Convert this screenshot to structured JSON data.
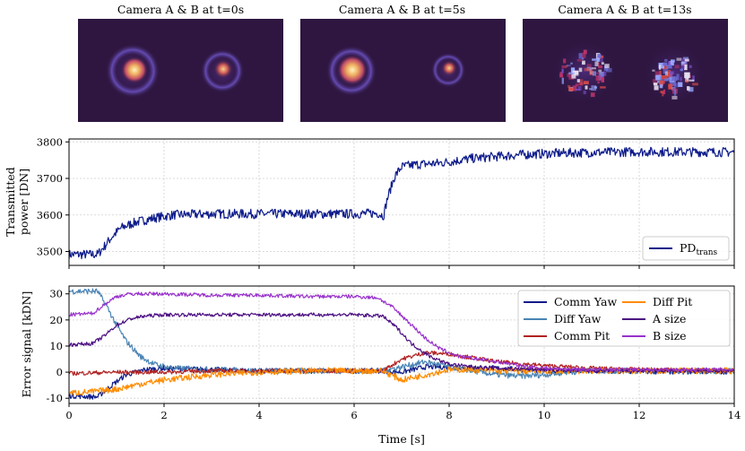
{
  "chart_data": [
    {
      "type": "image",
      "panel": "camera-thumbnails",
      "titles": [
        "Camera A & B at t=0s",
        "Camera A & B at t=5s",
        "Camera A & B at t=13s"
      ],
      "colors": {
        "background": "#2e1640",
        "ring": "#7b4fc8",
        "core": "#f5e09a",
        "speckle_blue": "#9aa8ff",
        "speckle_red": "#d84a4a"
      }
    },
    {
      "type": "line",
      "panel": "transmitted-power",
      "xlim": [
        0,
        14
      ],
      "ylim": [
        3462,
        3808
      ],
      "y_ticks": [
        3500,
        3600,
        3700,
        3800
      ],
      "ylabel": [
        "Transmitted",
        "power [DN]"
      ],
      "grid": true,
      "legend_position": "lower-right",
      "series": [
        {
          "name": "PD",
          "subscript": "trans",
          "color": "#0d1b8a",
          "noise_amplitude": 13,
          "x": [
            0,
            0.6,
            0.75,
            0.9,
            1.1,
            1.4,
            1.8,
            2.2,
            3,
            4,
            5,
            6,
            6.5,
            6.62,
            6.7,
            6.85,
            7.0,
            7.3,
            7.8,
            8.5,
            9.5,
            10.5,
            12,
            14
          ],
          "y": [
            3492,
            3492,
            3515,
            3540,
            3565,
            3580,
            3592,
            3600,
            3603,
            3603,
            3603,
            3603,
            3605,
            3598,
            3645,
            3705,
            3732,
            3738,
            3742,
            3755,
            3765,
            3770,
            3773,
            3772
          ]
        }
      ]
    },
    {
      "type": "line",
      "panel": "error-signals",
      "xlim": [
        0,
        14
      ],
      "ylim": [
        -12,
        33
      ],
      "x_ticks": [
        0,
        2,
        4,
        6,
        8,
        10,
        12,
        14
      ],
      "y_ticks": [
        -10,
        0,
        10,
        20,
        30
      ],
      "xlabel": "Time [s]",
      "ylabel": "Error signal [kDN]",
      "grid": true,
      "legend_position": "upper-right",
      "series": [
        {
          "name": "Comm Yaw",
          "color": "#0d1b8a",
          "noise_amplitude": 1.0,
          "x": [
            0,
            0.6,
            0.9,
            1.2,
            1.6,
            2,
            3,
            4,
            5,
            6,
            6.6,
            7,
            7.5,
            8,
            9,
            10,
            11,
            12,
            13,
            14
          ],
          "y": [
            -9,
            -9.5,
            -5,
            -1,
            1,
            1.5,
            1,
            0.5,
            0.5,
            0.5,
            0.5,
            0,
            2,
            2,
            1.5,
            0.5,
            0.3,
            0.3,
            0.2,
            0.2
          ]
        },
        {
          "name": "Diff Yaw",
          "color": "#4a84b4",
          "noise_amplitude": 1.1,
          "x": [
            0,
            0.6,
            0.8,
            1.0,
            1.2,
            1.5,
            1.8,
            2.2,
            3,
            4,
            5,
            6,
            6.6,
            7,
            7.5,
            8,
            8.5,
            9,
            9.5,
            10,
            10.5,
            11,
            12,
            14
          ],
          "y": [
            31,
            31,
            25,
            18,
            12,
            6,
            3,
            1.5,
            1,
            0.5,
            0.5,
            0.5,
            0.5,
            2,
            4,
            2,
            0.5,
            -1,
            -1.5,
            -1,
            0,
            0.5,
            0.5,
            0.5
          ]
        },
        {
          "name": "Comm Pit",
          "color": "#b22222",
          "noise_amplitude": 0.8,
          "x": [
            0,
            1,
            2,
            3,
            4,
            5,
            6,
            6.6,
            7,
            7.5,
            8,
            8.5,
            9,
            10,
            11,
            12,
            14
          ],
          "y": [
            -0.5,
            0,
            0,
            0.5,
            0.5,
            0.5,
            0.5,
            0.5,
            5,
            7.5,
            7,
            5.5,
            4,
            2.5,
            1.5,
            1,
            0.5
          ]
        },
        {
          "name": "Diff Pit",
          "color": "#ff8c00",
          "noise_amplitude": 1.2,
          "x": [
            0,
            0.5,
            1,
            1.5,
            2,
            2.5,
            3,
            4,
            5,
            6,
            6.6,
            7,
            7.5,
            8,
            8.5,
            9,
            10,
            11,
            12,
            13,
            14
          ],
          "y": [
            -8,
            -7.5,
            -6.5,
            -4.5,
            -3,
            -2,
            -1,
            0,
            0.5,
            0.5,
            0.5,
            -3,
            -1,
            1,
            1,
            0.5,
            0.5,
            0.5,
            0.5,
            0.5,
            0.5
          ]
        },
        {
          "name": "A size",
          "color": "#4b0e82",
          "noise_amplitude": 0.7,
          "x": [
            0,
            0.5,
            0.75,
            1.0,
            1.3,
            1.6,
            2,
            3,
            4,
            5,
            6,
            6.6,
            6.9,
            7.2,
            7.6,
            8,
            8.5,
            9,
            10,
            11,
            12,
            14
          ],
          "y": [
            10.5,
            11,
            14,
            18,
            20.5,
            21.5,
            22,
            22,
            22,
            22,
            22,
            21.5,
            17,
            11,
            6,
            3,
            2,
            1.5,
            1,
            0.5,
            0.5,
            0.5
          ]
        },
        {
          "name": "B size",
          "color": "#9932cc",
          "noise_amplitude": 0.7,
          "x": [
            0,
            0.5,
            0.75,
            1.0,
            1.3,
            1.6,
            2,
            3,
            4,
            5,
            6,
            6.5,
            6.8,
            7.1,
            7.5,
            7.8,
            8.2,
            8.6,
            9,
            9.5,
            10,
            11,
            12,
            14
          ],
          "y": [
            22,
            22.5,
            26,
            29,
            30,
            30,
            30,
            29.5,
            29.5,
            29,
            29,
            28.5,
            25,
            20,
            13,
            9,
            6,
            5,
            4,
            2.5,
            1.5,
            1,
            1,
            1
          ]
        }
      ]
    }
  ]
}
